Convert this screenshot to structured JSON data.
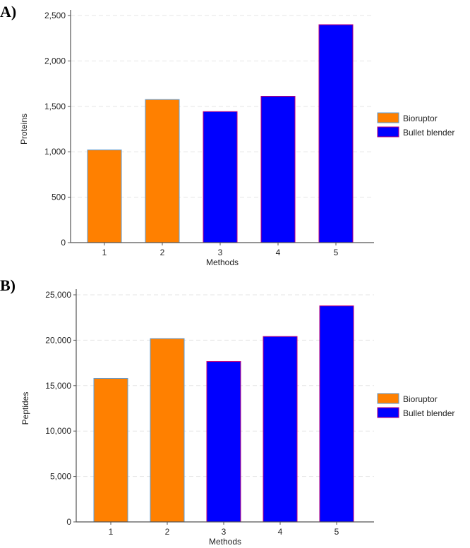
{
  "chart_data": [
    {
      "panel_label": "A)",
      "type": "bar",
      "categories": [
        "1",
        "2",
        "3",
        "4",
        "5"
      ],
      "values": [
        1020,
        1575,
        1442,
        1611,
        2399
      ],
      "groups": [
        "Bioruptor",
        "Bioruptor",
        "Bullet blender",
        "Bullet blender",
        "Bullet blender"
      ],
      "xlabel": "Methods",
      "ylabel": "Proteins",
      "ylim": [
        0,
        2500
      ],
      "yticks": [
        0,
        500,
        1000,
        1500,
        2000,
        2500
      ],
      "ytick_labels": [
        "0",
        "500",
        "1,000",
        "1,500",
        "2,000",
        "2,500"
      ],
      "grid": "horizontal dashed",
      "legend": {
        "placement": "right",
        "entries": [
          {
            "name": "Bioruptor",
            "color": "#ff8000"
          },
          {
            "name": "Bullet blender",
            "color": "#0000ff"
          }
        ]
      }
    },
    {
      "panel_label": "B)",
      "type": "bar",
      "categories": [
        "1",
        "2",
        "3",
        "4",
        "5"
      ],
      "values": [
        15800,
        20180,
        17660,
        20410,
        23780
      ],
      "groups": [
        "Bioruptor",
        "Bioruptor",
        "Bullet blender",
        "Bullet blender",
        "Bullet blender"
      ],
      "xlabel": "Methods",
      "ylabel": "Peptides",
      "ylim": [
        0,
        25000
      ],
      "yticks": [
        0,
        5000,
        10000,
        15000,
        20000,
        25000
      ],
      "ytick_labels": [
        "0",
        "5,000",
        "10,000",
        "15,000",
        "20,000",
        "25,000"
      ],
      "grid": "horizontal dashed",
      "legend": {
        "placement": "right",
        "entries": [
          {
            "name": "Bioruptor",
            "color": "#ff8000"
          },
          {
            "name": "Bullet blender",
            "color": "#0000ff"
          }
        ]
      }
    }
  ],
  "colors": {
    "Bioruptor": "#ff8000",
    "Bullet blender": "#0000ff",
    "Bioruptor_edge": "#5b9bd5",
    "Bullet blender_edge": "#c0007a"
  }
}
